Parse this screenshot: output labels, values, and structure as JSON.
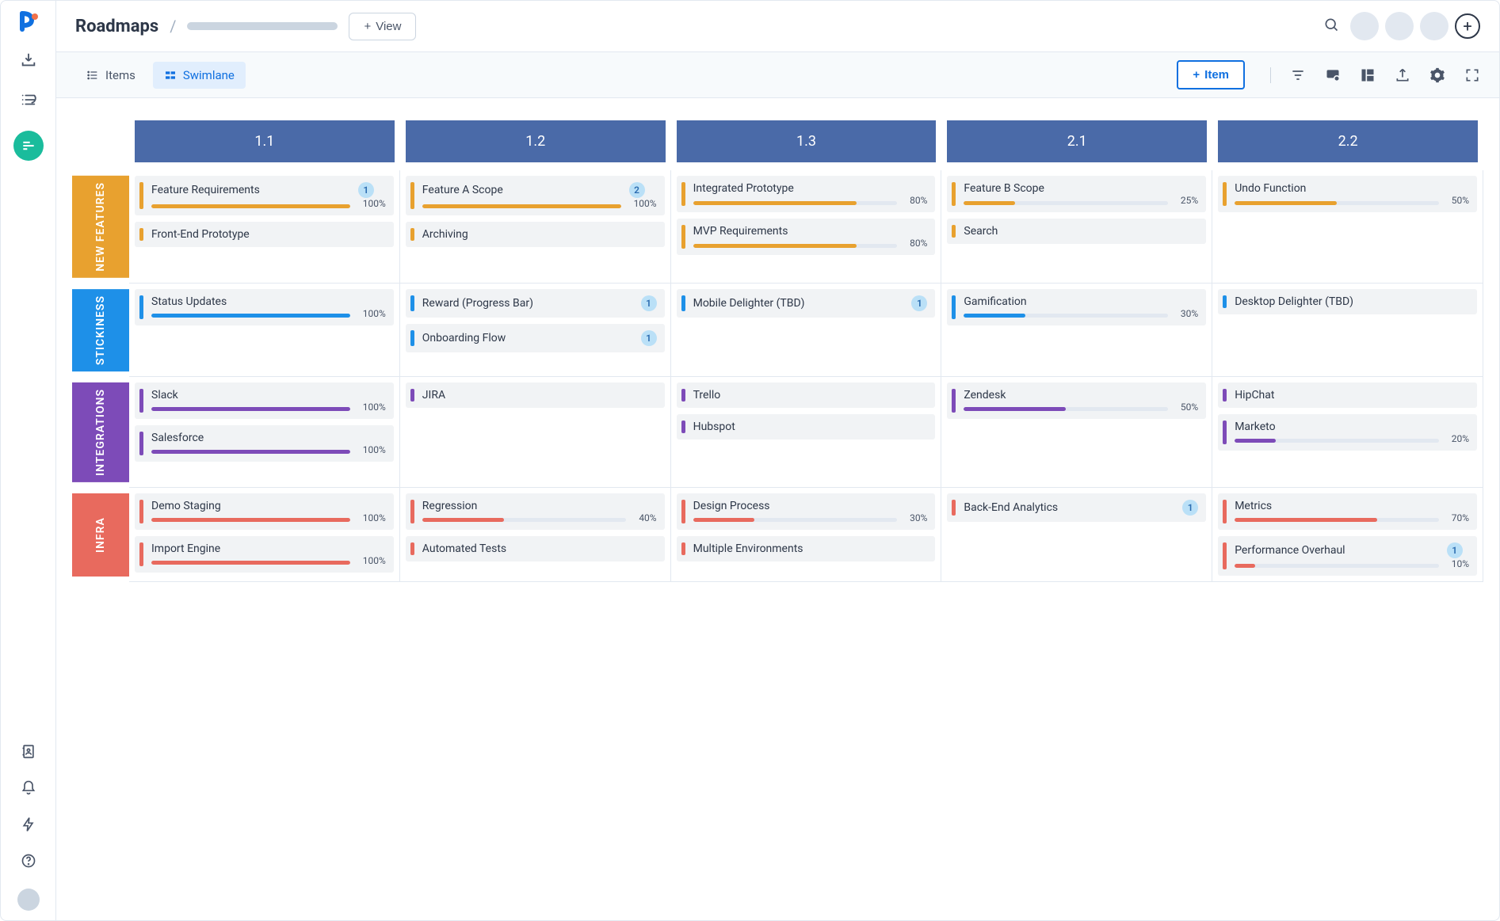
{
  "header": {
    "title": "Roadmaps",
    "view_btn_label": "View"
  },
  "tabs": {
    "items_label": "Items",
    "swimlane_label": "Swimlane"
  },
  "add_item_label": "Item",
  "lane_colors": {
    "new_features": "#e8a12f",
    "stickiness": "#1e90e8",
    "integrations": "#7d4bb8",
    "infra": "#e86a5e"
  },
  "column_header_bg": "#4a6aa8",
  "columns": [
    "1.1",
    "1.2",
    "1.3",
    "2.1",
    "2.2"
  ],
  "lanes": [
    {
      "id": "new_features",
      "label": "NEW FEATURES",
      "color": "#e8a12f",
      "cells": [
        [
          {
            "title": "Feature Requirements",
            "badge": 1,
            "progress": 100
          },
          {
            "title": "Front-End Prototype"
          }
        ],
        [
          {
            "title": "Feature A Scope",
            "badge": 2,
            "progress": 100
          },
          {
            "title": "Archiving"
          }
        ],
        [
          {
            "title": "Integrated Prototype",
            "progress": 80
          },
          {
            "title": "MVP Requirements",
            "progress": 80
          }
        ],
        [
          {
            "title": "Feature B Scope",
            "progress": 25
          },
          {
            "title": "Search"
          }
        ],
        [
          {
            "title": "Undo Function",
            "progress": 50
          }
        ]
      ]
    },
    {
      "id": "stickiness",
      "label": "STICKINESS",
      "color": "#1e90e8",
      "cells": [
        [
          {
            "title": "Status Updates",
            "progress": 100
          }
        ],
        [
          {
            "title": "Reward (Progress Bar)",
            "badge": 1
          },
          {
            "title": "Onboarding Flow",
            "badge": 1
          }
        ],
        [
          {
            "title": "Mobile Delighter (TBD)",
            "badge": 1
          }
        ],
        [
          {
            "title": "Gamification",
            "progress": 30
          }
        ],
        [
          {
            "title": "Desktop Delighter (TBD)"
          }
        ]
      ]
    },
    {
      "id": "integrations",
      "label": "INTEGRATIONS",
      "color": "#7d4bb8",
      "cells": [
        [
          {
            "title": "Slack",
            "progress": 100
          },
          {
            "title": "Salesforce",
            "progress": 100
          }
        ],
        [
          {
            "title": "JIRA"
          }
        ],
        [
          {
            "title": "Trello"
          },
          {
            "title": "Hubspot"
          }
        ],
        [
          {
            "title": "Zendesk",
            "progress": 50
          }
        ],
        [
          {
            "title": "HipChat"
          },
          {
            "title": "Marketo",
            "progress": 20
          }
        ]
      ]
    },
    {
      "id": "infra",
      "label": "INFRA",
      "color": "#e86a5e",
      "cells": [
        [
          {
            "title": "Demo Staging",
            "progress": 100
          },
          {
            "title": "Import Engine",
            "progress": 100
          }
        ],
        [
          {
            "title": "Regression",
            "progress": 40
          },
          {
            "title": "Automated Tests"
          }
        ],
        [
          {
            "title": "Design Process",
            "progress": 30
          },
          {
            "title": "Multiple Environments"
          }
        ],
        [
          {
            "title": "Back-End Analytics",
            "badge": 1
          }
        ],
        [
          {
            "title": "Metrics",
            "progress": 70
          },
          {
            "title": "Performance Overhaul",
            "badge": 1,
            "progress": 10
          }
        ]
      ]
    }
  ]
}
